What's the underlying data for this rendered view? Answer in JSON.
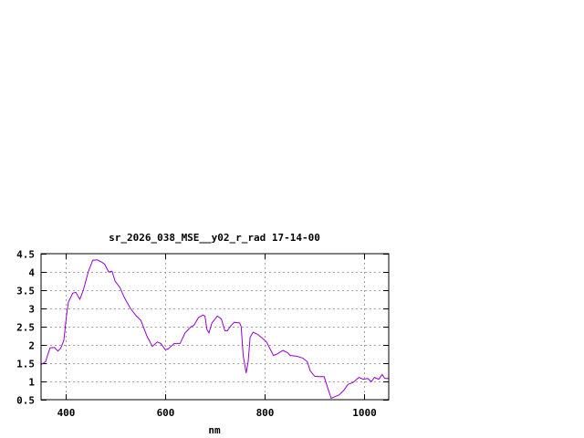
{
  "chart_data": {
    "type": "line",
    "title": "sr_2026_038_MSE__y02_r_rad 17-14-00",
    "xlabel": "nm",
    "ylabel": "",
    "xlim": [
      350,
      1050
    ],
    "ylim": [
      0.5,
      4.5
    ],
    "xticks": [
      400,
      600,
      800,
      1000
    ],
    "yticks": [
      0.5,
      1,
      1.5,
      2,
      2.5,
      3,
      3.5,
      4,
      4.5
    ],
    "ytick_labels": [
      "0.5",
      "1",
      "1.5",
      "2",
      "2.5",
      "3",
      "3.5",
      "4",
      "4.5"
    ],
    "grid": true,
    "line_color": "#9400d3",
    "series": [
      {
        "x": [
          350,
          359,
          368,
          377,
          384,
          390,
          396,
          401,
          405,
          414,
          420,
          428,
          435,
          445,
          454,
          463,
          472,
          478,
          486,
          493,
          499,
          509,
          518,
          530,
          542,
          551,
          563,
          574,
          584,
          591,
          600,
          606,
          618,
          630,
          640,
          652,
          658,
          667,
          676,
          680,
          684,
          688,
          694,
          705,
          713,
          720,
          725,
          733,
          739,
          750,
          753,
          757,
          763,
          767,
          771,
          777,
          786,
          795,
          804,
          818,
          825,
          837,
          846,
          852,
          865,
          877,
          886,
          892,
          901,
          910,
          920,
          926,
          934,
          941,
          950,
          959,
          968,
          978,
          990,
          999,
          1008,
          1015,
          1021,
          1030,
          1037,
          1042,
          1050
        ],
        "y": [
          1.46,
          1.54,
          1.92,
          1.93,
          1.83,
          1.92,
          2.13,
          2.79,
          3.17,
          3.42,
          3.44,
          3.25,
          3.5,
          4.0,
          4.32,
          4.33,
          4.27,
          4.21,
          4.0,
          4.02,
          3.75,
          3.57,
          3.29,
          3.0,
          2.79,
          2.67,
          2.25,
          1.96,
          2.08,
          2.04,
          1.87,
          1.89,
          2.04,
          2.04,
          2.33,
          2.5,
          2.54,
          2.75,
          2.82,
          2.79,
          2.42,
          2.33,
          2.6,
          2.79,
          2.71,
          2.39,
          2.39,
          2.54,
          2.62,
          2.6,
          2.5,
          1.71,
          1.23,
          1.55,
          2.21,
          2.35,
          2.29,
          2.19,
          2.08,
          1.71,
          1.75,
          1.85,
          1.79,
          1.71,
          1.69,
          1.64,
          1.54,
          1.29,
          1.14,
          1.13,
          1.13,
          0.87,
          0.54,
          0.58,
          0.63,
          0.75,
          0.92,
          0.97,
          1.11,
          1.06,
          1.08,
          0.99,
          1.11,
          1.06,
          1.19,
          1.08,
          1.08
        ]
      }
    ]
  }
}
